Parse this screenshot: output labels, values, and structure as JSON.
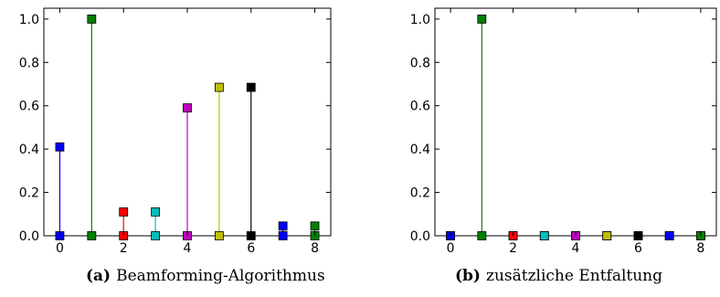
{
  "colors": {
    "seq": [
      "#0000ff",
      "#008000",
      "#ff0000",
      "#00bfbf",
      "#bf00bf",
      "#bfbf00",
      "#000000",
      "#0000ff",
      "#008000"
    ],
    "frame": "#000000"
  },
  "captions": [
    {
      "tag": "(a)",
      "text": "Beamforming-Algorithmus"
    },
    {
      "tag": "(b)",
      "text": "zusätzliche Entfaltung"
    }
  ],
  "chart_data": [
    {
      "type": "stem",
      "title": "",
      "xlabel": "",
      "ylabel": "",
      "x": [
        0,
        1,
        2,
        3,
        4,
        5,
        6,
        7,
        8
      ],
      "values": [
        0.41,
        1.0,
        0.11,
        0.11,
        0.59,
        0.685,
        0.685,
        0.045,
        0.045
      ],
      "xlim": [
        -0.5,
        8.5
      ],
      "ylim": [
        0,
        1.05
      ],
      "xticks": [
        0,
        2,
        4,
        6,
        8
      ],
      "yticks": [
        0.0,
        0.2,
        0.4,
        0.6,
        0.8,
        1.0
      ],
      "ytick_labels": [
        "0.0",
        "0.2",
        "0.4",
        "0.6",
        "0.8",
        "1.0"
      ],
      "grid": false,
      "marker": "square"
    },
    {
      "type": "stem",
      "title": "",
      "xlabel": "",
      "ylabel": "",
      "x": [
        0,
        1,
        2,
        3,
        4,
        5,
        6,
        7,
        8
      ],
      "values": [
        0.0,
        1.0,
        0.0,
        0.0,
        0.0,
        0.0,
        0.0,
        0.0,
        0.0
      ],
      "xlim": [
        -0.5,
        8.5
      ],
      "ylim": [
        0,
        1.05
      ],
      "xticks": [
        0,
        2,
        4,
        6,
        8
      ],
      "yticks": [
        0.0,
        0.2,
        0.4,
        0.6,
        0.8,
        1.0
      ],
      "ytick_labels": [
        "0.0",
        "0.2",
        "0.4",
        "0.6",
        "0.8",
        "1.0"
      ],
      "grid": false,
      "marker": "square"
    }
  ]
}
